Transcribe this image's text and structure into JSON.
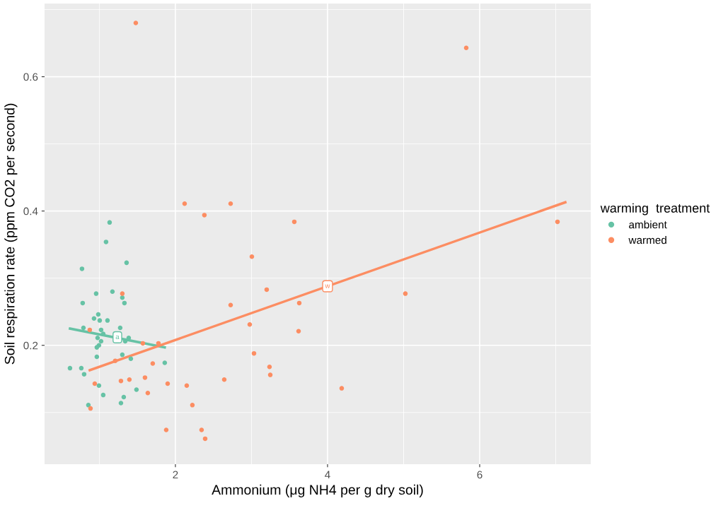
{
  "chart_data": {
    "type": "scatter",
    "xlabel": "Ammonium (μg NH4 per g dry soil)",
    "ylabel": "Soil respiration rate (ppm CO2 per second)",
    "legend_title": "warming  treatment",
    "legend": "right",
    "grid": true,
    "marker": "circle",
    "xlim": [
      0.28,
      7.46
    ],
    "ylim": [
      0.023,
      0.709
    ],
    "xticks": [
      2,
      4,
      6
    ],
    "yticks": [
      0.2,
      0.4,
      0.6
    ],
    "series": [
      {
        "name": "ambient",
        "color": "#66c2a5",
        "x": [
          1.135,
          1.088,
          1.358,
          0.772,
          0.958,
          1.172,
          1.302,
          1.33,
          0.781,
          0.986,
          0.93,
          1.005,
          1.107,
          0.791,
          1.274,
          1.023,
          1.051,
          0.977,
          1.023,
          1.34,
          1.386,
          0.995,
          0.967,
          0.967,
          1.302,
          1.414,
          1.86,
          0.614,
          0.763,
          0.8,
          0.995,
          1.051,
          1.488,
          1.321,
          1.284,
          0.856
        ],
        "values": [
          0.383,
          0.354,
          0.323,
          0.314,
          0.277,
          0.28,
          0.271,
          0.263,
          0.263,
          0.246,
          0.24,
          0.237,
          0.237,
          0.226,
          0.226,
          0.223,
          0.217,
          0.211,
          0.206,
          0.206,
          0.211,
          0.2,
          0.197,
          0.183,
          0.186,
          0.18,
          0.174,
          0.166,
          0.166,
          0.157,
          0.14,
          0.126,
          0.134,
          0.123,
          0.114,
          0.111
        ]
      },
      {
        "name": "warmed",
        "color": "#fc8d62",
        "x": [
          1.479,
          5.823,
          2.121,
          2.726,
          2.381,
          3.563,
          7.023,
          3.005,
          3.2,
          2.726,
          3.628,
          5.023,
          2.977,
          3.619,
          1.302,
          0.874,
          1.572,
          1.777,
          1.209,
          1.702,
          3.033,
          3.237,
          3.247,
          0.94,
          1.284,
          1.395,
          1.6,
          1.898,
          1.637,
          2.149,
          2.642,
          4.186,
          0.884,
          2.223,
          1.879,
          2.344,
          2.391
        ],
        "values": [
          0.68,
          0.643,
          0.411,
          0.411,
          0.394,
          0.384,
          0.384,
          0.332,
          0.283,
          0.26,
          0.263,
          0.277,
          0.231,
          0.221,
          0.277,
          0.223,
          0.203,
          0.203,
          0.177,
          0.173,
          0.188,
          0.168,
          0.156,
          0.143,
          0.147,
          0.149,
          0.152,
          0.143,
          0.129,
          0.14,
          0.149,
          0.136,
          0.106,
          0.111,
          0.074,
          0.074,
          0.061
        ]
      },
      {
        "type": "line",
        "marker": "none",
        "color": "#66c2a5",
        "x": [
          0.614,
          1.86
        ],
        "values": [
          0.225,
          0.197
        ]
      },
      {
        "type": "line",
        "marker": "none",
        "color": "#fc8d62",
        "x": [
          0.874,
          7.126
        ],
        "values": [
          0.163,
          0.413
        ]
      }
    ],
    "annotations": [
      {
        "text": "a",
        "x": 1.237,
        "y": 0.212
      },
      {
        "text": "w",
        "x": 4.0,
        "y": 0.288
      }
    ]
  }
}
